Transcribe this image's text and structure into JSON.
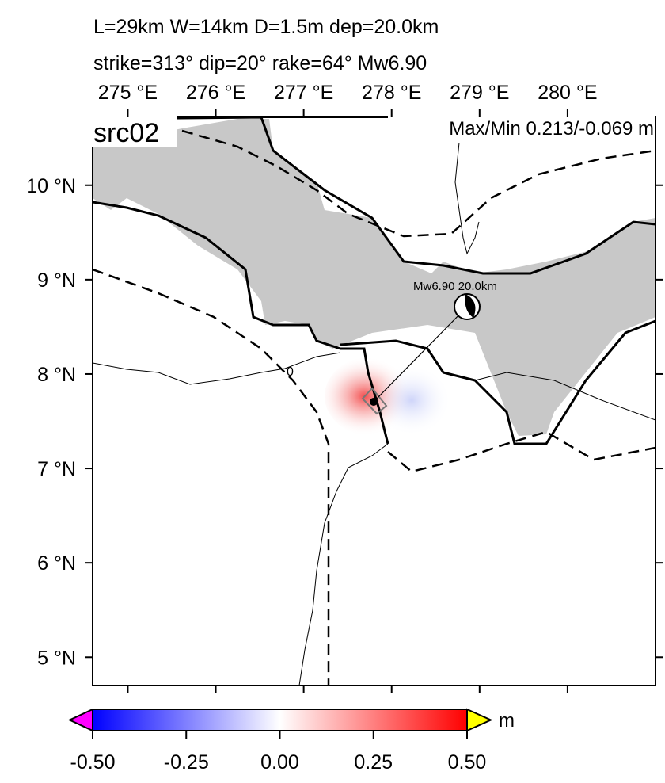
{
  "map": {
    "title_lines": [
      "L=29km W=14km D=1.5m dep=20.0km",
      "strike=313° dip=20° rake=64° Mw6.90"
    ],
    "label": "src02",
    "maxmin": "Max/Min 0.213/-0.069 m",
    "mechanism_label": "Mw6.90  20.0km",
    "contour_label": "0",
    "xlim": [
      274.6,
      281.0
    ],
    "ylim": [
      4.7,
      10.72
    ],
    "xticks": [
      {
        "value": 275,
        "label": "275 °E"
      },
      {
        "value": 276,
        "label": "276 °E"
      },
      {
        "value": 277,
        "label": "277 °E"
      },
      {
        "value": 278,
        "label": "278 °E"
      },
      {
        "value": 279,
        "label": "279 °E"
      },
      {
        "value": 280,
        "label": "280 °E"
      }
    ],
    "yticks": [
      {
        "value": 10,
        "label": "10 °N"
      },
      {
        "value": 9,
        "label": "9 °N"
      },
      {
        "value": 8,
        "label": "8 °N"
      },
      {
        "value": 7,
        "label": "7 °N"
      },
      {
        "value": 6,
        "label": "6 °N"
      },
      {
        "value": 5,
        "label": "5 °N"
      }
    ],
    "colorbar": {
      "lim": [
        -0.5,
        0.5
      ],
      "unit": "m",
      "ticks": [
        {
          "value": -0.5,
          "label": "-0.50"
        },
        {
          "value": -0.25,
          "label": "-0.25"
        },
        {
          "value": 0,
          "label": "0.00"
        },
        {
          "value": 0.25,
          "label": "0.25"
        },
        {
          "value": 0.5,
          "label": "0.50"
        }
      ]
    }
  }
}
